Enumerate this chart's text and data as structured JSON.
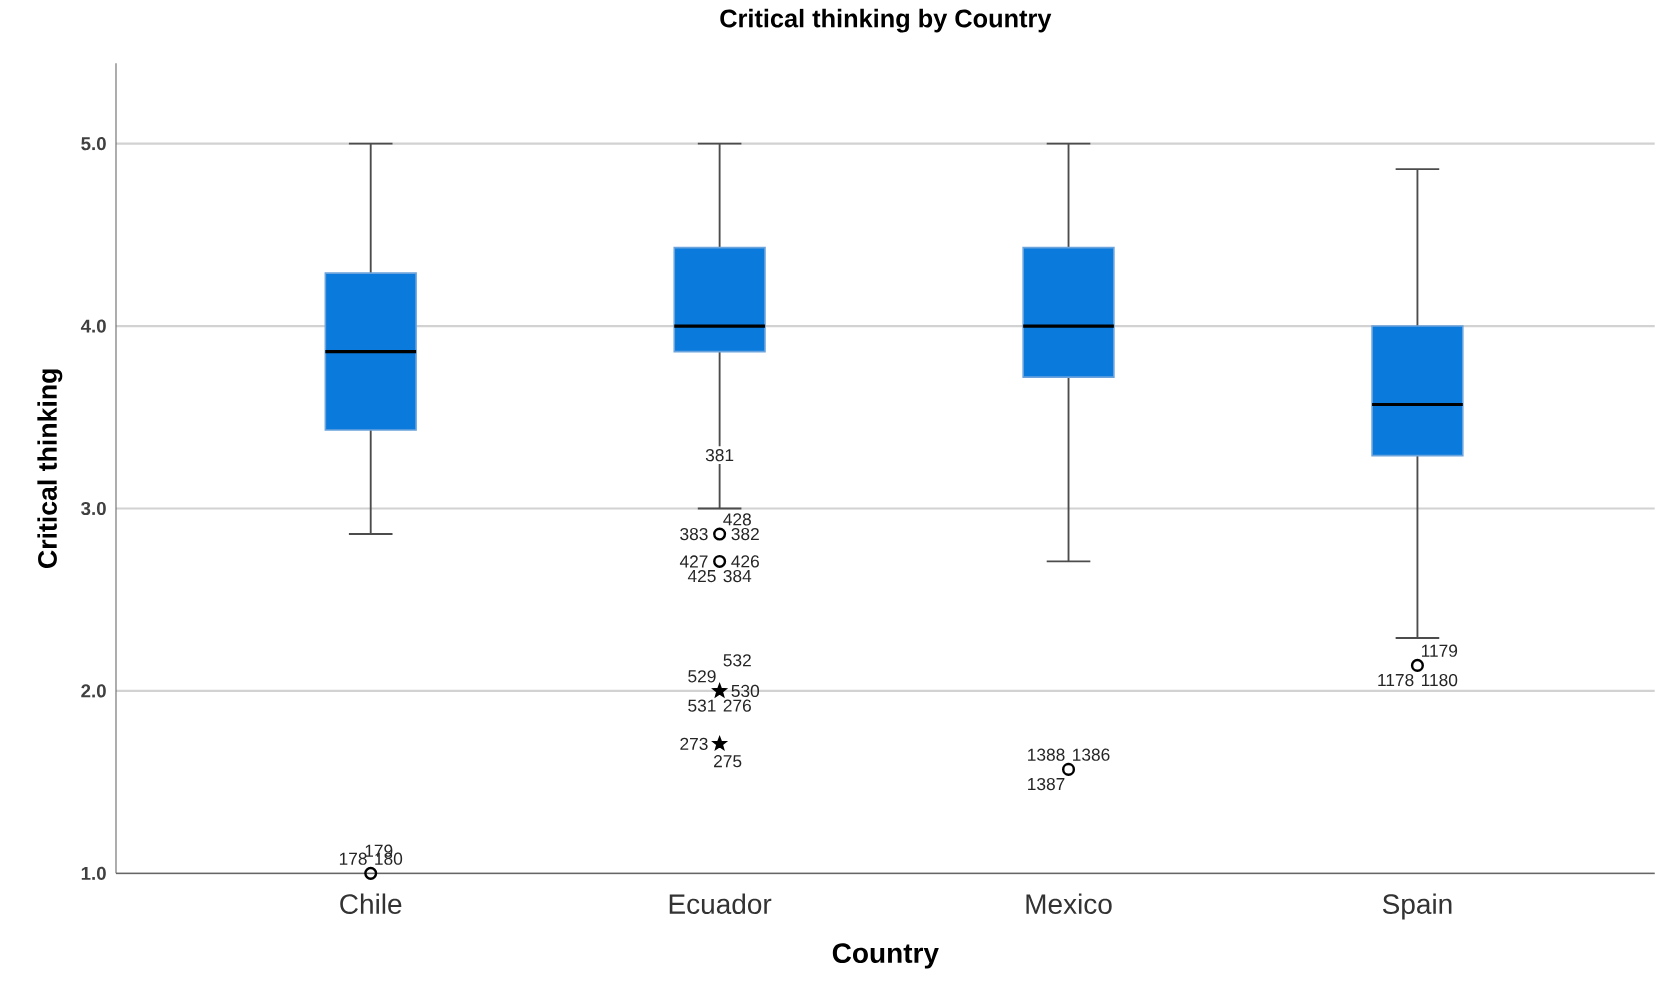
{
  "chart_data": {
    "type": "box",
    "title": "Critical thinking by Country",
    "xlabel": "Country",
    "ylabel": "Critical thinking",
    "categories": [
      "Chile",
      "Ecuador",
      "Mexico",
      "Spain"
    ],
    "ylim": [
      1.0,
      5.44
    ],
    "yticks": [
      {
        "value": 1,
        "label": "1.0"
      },
      {
        "value": 2,
        "label": "2.0"
      },
      {
        "value": 3,
        "label": "3.0"
      },
      {
        "value": 4,
        "label": "4.0"
      },
      {
        "value": 5,
        "label": "5.0"
      }
    ],
    "grid": "y",
    "series": [
      {
        "type": "box",
        "color": "#0a7bdc",
        "marker": "circle",
        "boxes": [
          {
            "low": 2.86,
            "q1": 3.43,
            "median": 3.86,
            "q3": 4.29,
            "high": 5.0,
            "outliers": [
              1.0
            ]
          },
          {
            "low": 3.0,
            "q1": 3.86,
            "median": 4.0,
            "q3": 4.43,
            "high": 5.0,
            "outliers": [
              2.86,
              2.71
            ]
          },
          {
            "low": 2.71,
            "q1": 3.72,
            "median": 4.0,
            "q3": 4.43,
            "high": 5.0,
            "outliers": [
              1.57
            ]
          },
          {
            "low": 2.29,
            "q1": 3.29,
            "median": 3.57,
            "q3": 4.0,
            "high": 4.86,
            "outliers": [
              2.14
            ]
          }
        ]
      },
      {
        "type": "scatter",
        "marker": "star",
        "color": "#000000",
        "x": [
          "Ecuador",
          "Ecuador"
        ],
        "values": [
          2.0,
          1.71
        ]
      }
    ],
    "annotations": [
      "178",
      "180",
      "179",
      "381",
      "383",
      "382",
      "428",
      "427",
      "426",
      "425",
      "384",
      "529",
      "530",
      "532",
      "531",
      "276",
      "273",
      "275",
      "1388",
      "1386",
      "1387",
      "1178",
      "1180",
      "1179"
    ]
  }
}
